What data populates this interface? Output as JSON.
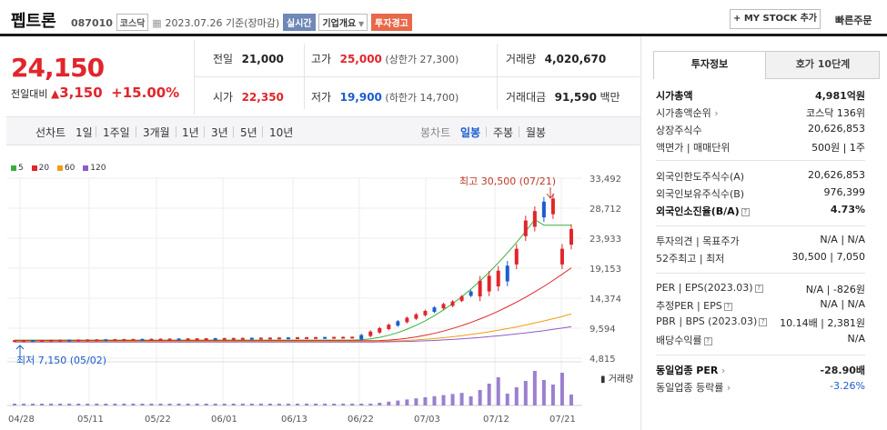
{
  "header": {
    "name": "펩트론",
    "code": "087010",
    "market": "코스닥",
    "date": "2023.07.26 기준(장마감)",
    "realtime": "실시간",
    "company_overview": "기업개요",
    "warning": "투자경고",
    "mystock": "+ MY STOCK 추가",
    "quick_order": "빠른주문"
  },
  "price": {
    "current": "24,150",
    "change_label": "전일대비",
    "change": "3,150",
    "change_pct": "+15.00%"
  },
  "quote": {
    "prev_label": "전일",
    "prev": "21,000",
    "high_label": "고가",
    "high": "25,000",
    "upper_limit": "(상한가 27,300)",
    "volume_label": "거래량",
    "volume": "4,020,670",
    "open_label": "시가",
    "open": "22,350",
    "low_label": "저가",
    "low": "19,900",
    "lower_limit": "(하한가 14,700)",
    "amount_label": "거래대금",
    "amount": "91,590",
    "amount_unit": "백만"
  },
  "periods": {
    "line_label": "선차트",
    "line_items": [
      "1일",
      "1주일",
      "3개월",
      "1년",
      "3년",
      "5년",
      "10년"
    ],
    "candle_label": "봉차트",
    "candle_items": [
      "일봉",
      "주봉",
      "월봉"
    ],
    "selected": "일봉"
  },
  "legend": [
    "5",
    "20",
    "60",
    "120"
  ],
  "legend_colors": [
    "#3cae3c",
    "#e1252b",
    "#f39c12",
    "#8e5cc9"
  ],
  "annotations": {
    "high": "최고 30,500 (07/21)",
    "low": "최저 7,150 (05/02)",
    "volume_label": "거래량"
  },
  "chart_data": {
    "type": "candlestick",
    "y_ticks": [
      33492,
      28712,
      23933,
      19153,
      14374,
      9594,
      4815
    ],
    "x_ticks": [
      "04/28",
      "05/11",
      "05/22",
      "06/01",
      "06/13",
      "06/22",
      "07/03",
      "07/12",
      "07/21"
    ],
    "ylim": [
      4815,
      33492
    ],
    "volume_label": "거래량"
  },
  "tabs": {
    "invest": "투자정보",
    "quote10": "호가 10단계"
  },
  "invest": [
    {
      "label": "시가총액",
      "value": "4,981억원",
      "bold": true
    },
    {
      "label": "시가총액순위",
      "value": "코스닥 136위"
    },
    {
      "label": "상장주식수",
      "value": "20,626,853"
    },
    {
      "label": "액면가 | 매매단위",
      "value": "500원 | 1주"
    },
    {
      "label": "외국인한도주식수(A)",
      "value": "20,626,853"
    },
    {
      "label": "외국인보유주식수(B)",
      "value": "976,399"
    },
    {
      "label": "외국인소진율(B/A)",
      "value": "4.73%",
      "bold": true
    },
    {
      "label": "투자의견 | 목표주가",
      "value": "N/A | N/A"
    },
    {
      "label": "52주최고 | 최저",
      "value": "30,500 | 7,050"
    },
    {
      "label": "PER | EPS(2023.03)",
      "value": "N/A | -826원"
    },
    {
      "label": "추정PER | EPS",
      "value": "N/A | N/A"
    },
    {
      "label": "PBR | BPS (2023.03)",
      "value": "10.14배 | 2,381원"
    },
    {
      "label": "배당수익률",
      "value": "N/A"
    },
    {
      "label": "동일업종 PER",
      "value": "-28.90배",
      "bold": true
    },
    {
      "label": "동일업종 등락률",
      "value": "-3.26%",
      "blue": true
    }
  ]
}
